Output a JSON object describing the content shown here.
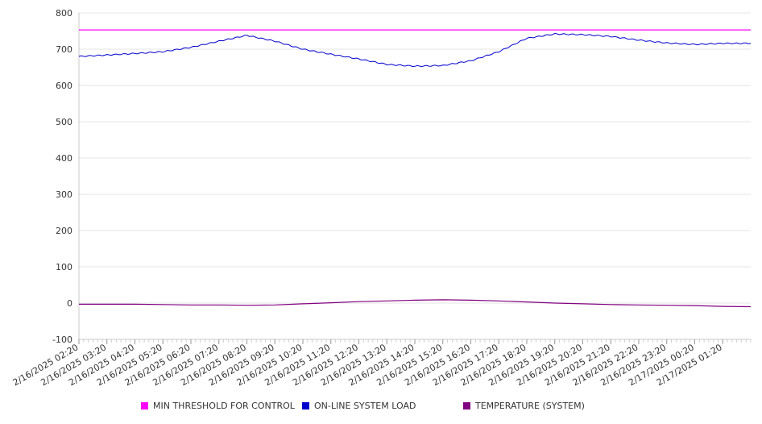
{
  "chart_data": {
    "type": "line",
    "title": "",
    "xlabel": "",
    "ylabel": "",
    "ylim": [
      -100,
      800
    ],
    "yticks": [
      -100,
      0,
      100,
      200,
      300,
      400,
      500,
      600,
      700,
      800
    ],
    "grid": true,
    "legend_position": "bottom",
    "x_tick_labels": [
      "2/16/2025 02:20",
      "2/16/2025 03:20",
      "2/16/2025 04:20",
      "2/16/2025 05:20",
      "2/16/2025 06:20",
      "2/16/2025 07:20",
      "2/16/2025 08:20",
      "2/16/2025 09:20",
      "2/16/2025 10:20",
      "2/16/2025 11:20",
      "2/16/2025 12:20",
      "2/16/2025 13:20",
      "2/16/2025 14:20",
      "2/16/2025 15:20",
      "2/16/2025 16:20",
      "2/16/2025 17:20",
      "2/16/2025 18:20",
      "2/16/2025 19:20",
      "2/16/2025 20:20",
      "2/16/2025 21:20",
      "2/16/2025 22:20",
      "2/16/2025 23:20",
      "2/17/2025 00:20",
      "2/17/2025 01:20"
    ],
    "series": [
      {
        "name": "MIN THRESHOLD FOR CONTROL",
        "color": "#ff00ff",
        "x": [
          "2/16/2025 02:20",
          "2/17/2025 02:20"
        ],
        "values": [
          753,
          753
        ]
      },
      {
        "name": "ON-LINE SYSTEM LOAD",
        "color": "#0000cc",
        "x": [
          "2/16/2025 02:20",
          "2/16/2025 03:20",
          "2/16/2025 04:20",
          "2/16/2025 05:20",
          "2/16/2025 06:20",
          "2/16/2025 07:20",
          "2/16/2025 08:20",
          "2/16/2025 09:20",
          "2/16/2025 10:20",
          "2/16/2025 11:20",
          "2/16/2025 12:20",
          "2/16/2025 13:20",
          "2/16/2025 14:20",
          "2/16/2025 15:20",
          "2/16/2025 16:20",
          "2/16/2025 17:20",
          "2/16/2025 18:20",
          "2/16/2025 19:20",
          "2/16/2025 20:20",
          "2/16/2025 21:20",
          "2/16/2025 22:20",
          "2/16/2025 23:20",
          "2/17/2025 00:20",
          "2/17/2025 01:20",
          "2/17/2025 02:20"
        ],
        "values": [
          680,
          684,
          688,
          693,
          705,
          722,
          738,
          722,
          700,
          686,
          673,
          658,
          653,
          655,
          668,
          693,
          730,
          742,
          740,
          735,
          725,
          717,
          713,
          716,
          716
        ]
      },
      {
        "name": "TEMPERATURE (SYSTEM)",
        "color": "#800080",
        "x": [
          "2/16/2025 02:20",
          "2/16/2025 03:20",
          "2/16/2025 04:20",
          "2/16/2025 05:20",
          "2/16/2025 06:20",
          "2/16/2025 07:20",
          "2/16/2025 08:20",
          "2/16/2025 09:20",
          "2/16/2025 10:20",
          "2/16/2025 11:20",
          "2/16/2025 12:20",
          "2/16/2025 13:20",
          "2/16/2025 14:20",
          "2/16/2025 15:20",
          "2/16/2025 16:20",
          "2/16/2025 17:20",
          "2/16/2025 18:20",
          "2/16/2025 19:20",
          "2/16/2025 20:20",
          "2/16/2025 21:20",
          "2/16/2025 22:20",
          "2/16/2025 23:20",
          "2/17/2025 00:20",
          "2/17/2025 01:20",
          "2/17/2025 02:20"
        ],
        "values": [
          -3,
          -3,
          -3,
          -4,
          -5,
          -5,
          -6,
          -5,
          -2,
          1,
          4,
          6,
          8,
          9,
          8,
          6,
          3,
          0,
          -2,
          -4,
          -5,
          -6,
          -7,
          -9,
          -10
        ]
      }
    ]
  }
}
